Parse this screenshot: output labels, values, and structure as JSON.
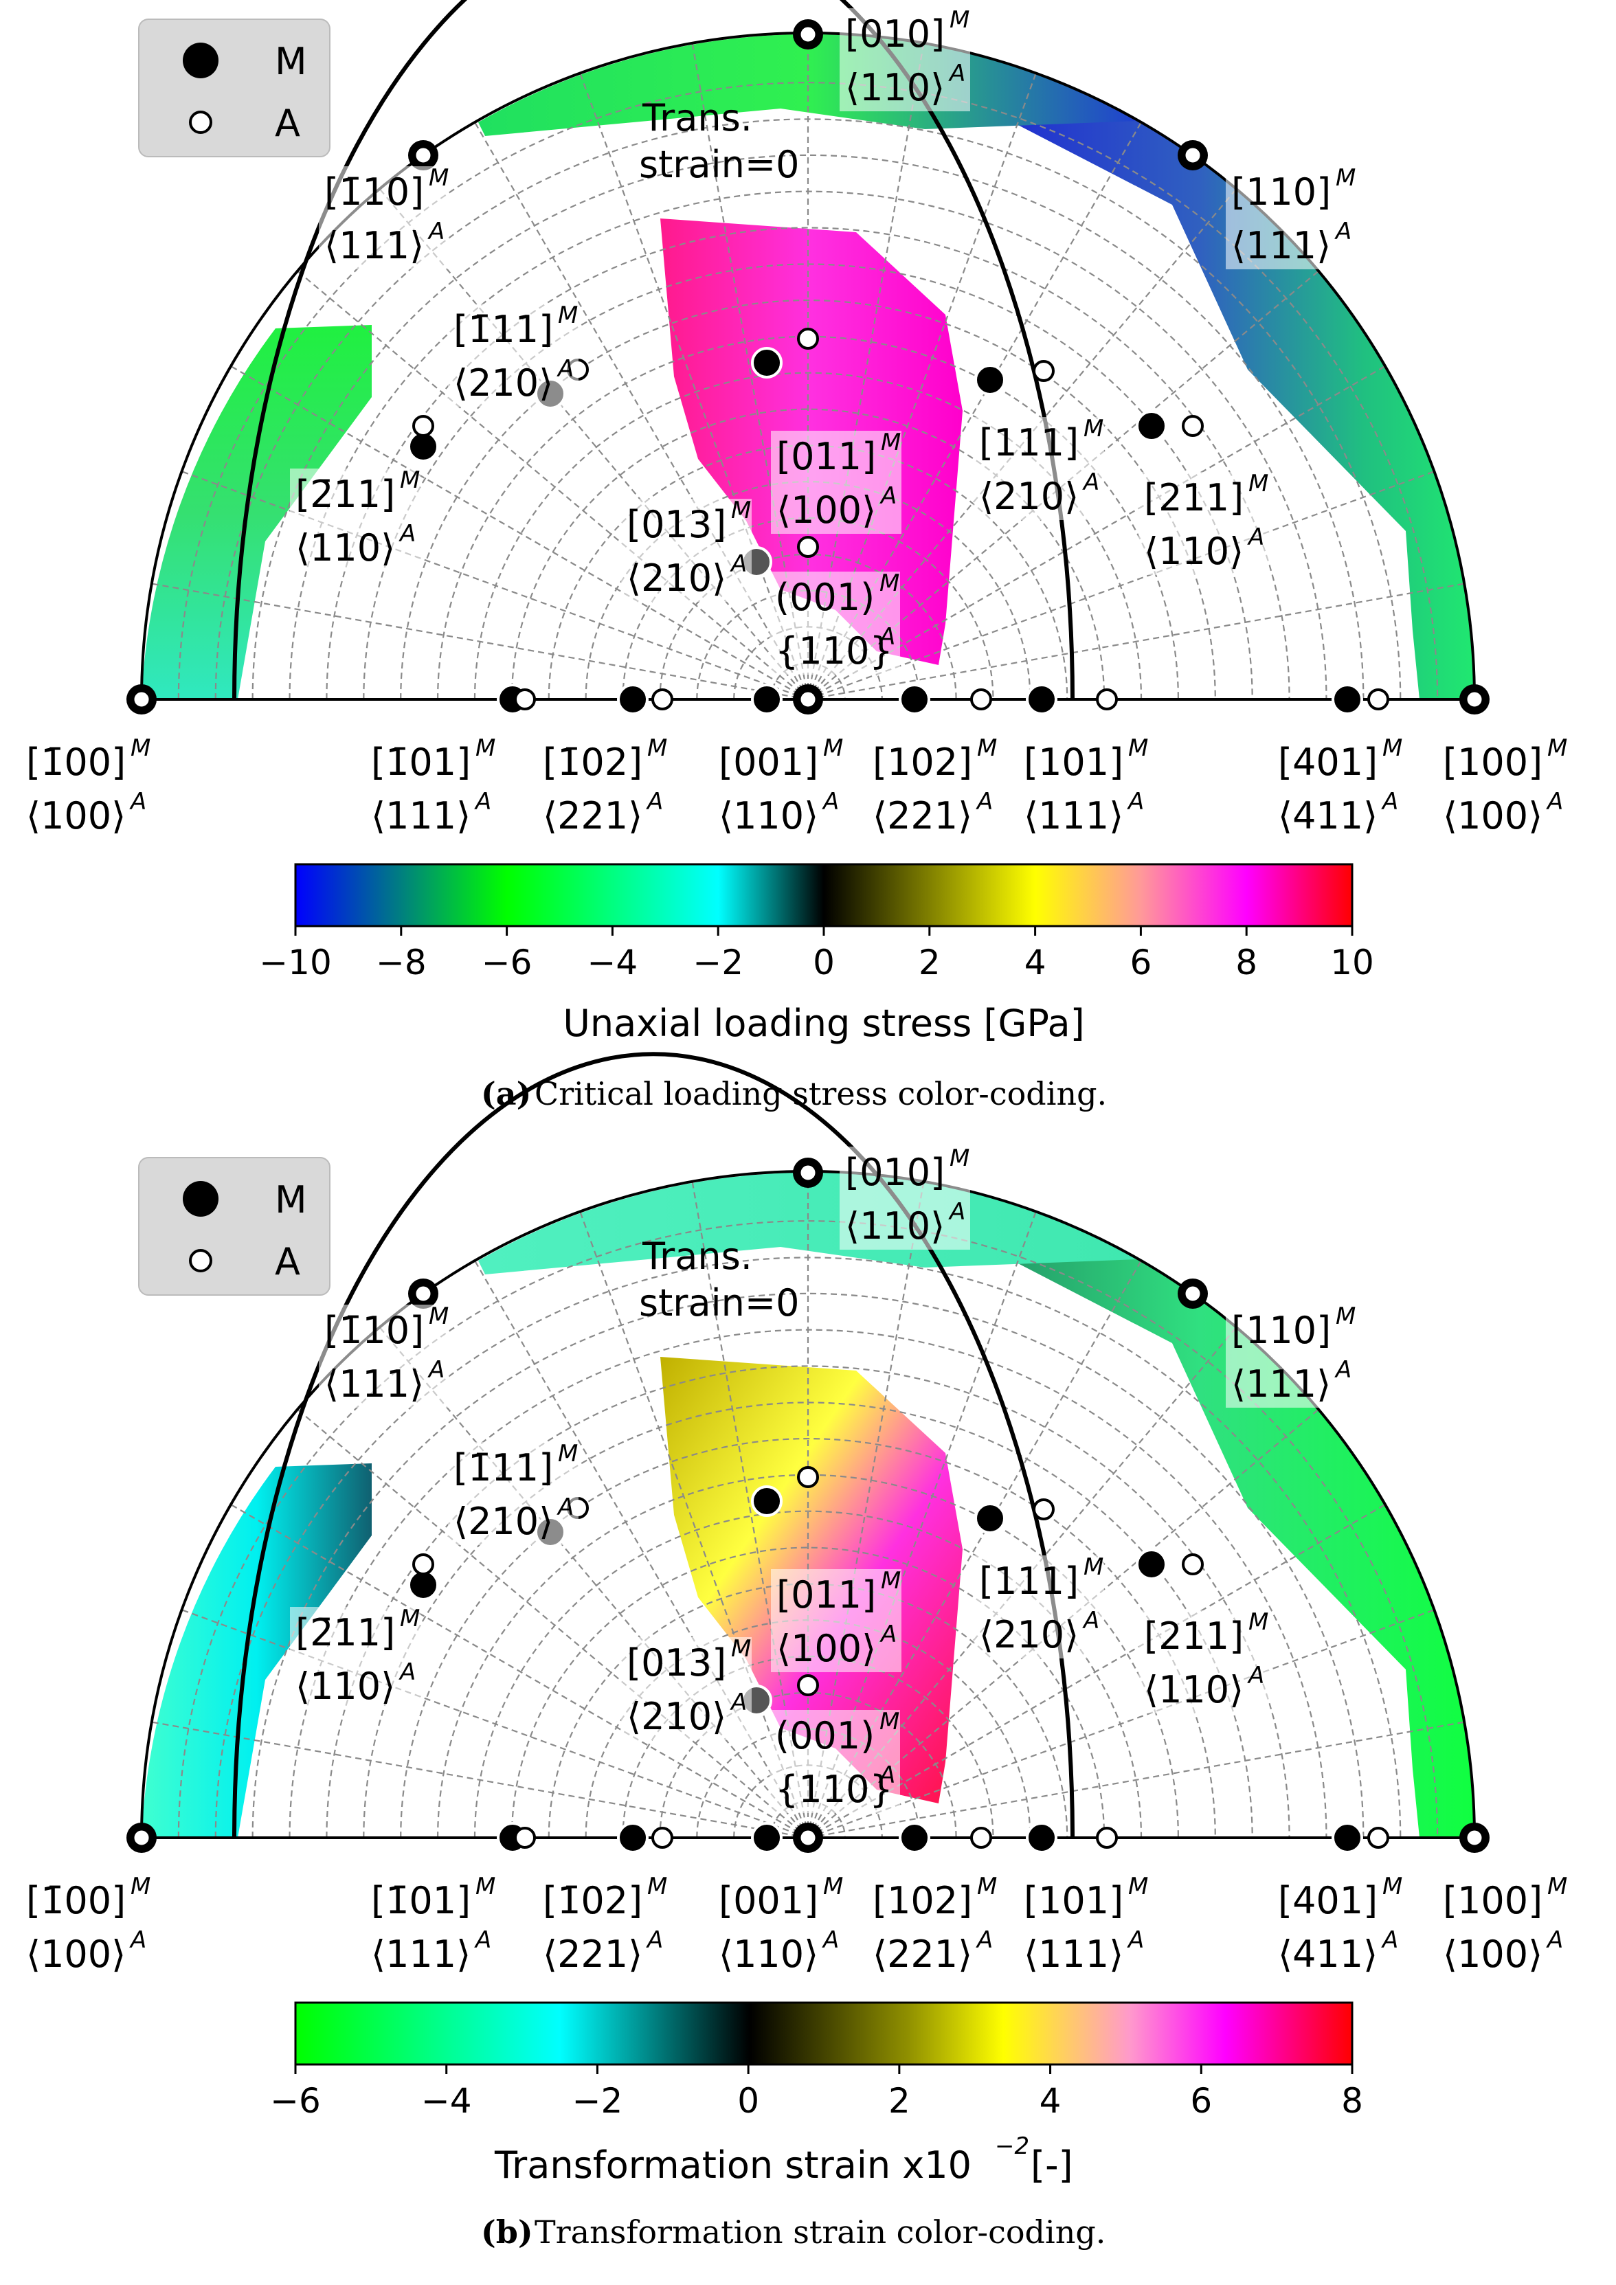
{
  "legend": [
    {
      "marker": "filled",
      "label": "M"
    },
    {
      "marker": "open",
      "label": "A"
    }
  ],
  "trans_strain_label": [
    "Trans.",
    "strain=0"
  ],
  "directions": [
    {
      "m": "[1̄00]",
      "a": "⟨100⟩",
      "sup_m": "M",
      "sup_a": "A"
    },
    {
      "m": "[1̄01]",
      "a": "⟨111⟩",
      "sup_m": "M",
      "sup_a": "A"
    },
    {
      "m": "[1̄02]",
      "a": "⟨221⟩",
      "sup_m": "M",
      "sup_a": "A"
    },
    {
      "m": "[001]",
      "a": "⟨110⟩",
      "sup_m": "M",
      "sup_a": "A"
    },
    {
      "m": "[102]",
      "a": "⟨221⟩",
      "sup_m": "M",
      "sup_a": "A"
    },
    {
      "m": "[101]",
      "a": "⟨111⟩",
      "sup_m": "M",
      "sup_a": "A"
    },
    {
      "m": "[401]",
      "a": "⟨411⟩",
      "sup_m": "M",
      "sup_a": "A"
    },
    {
      "m": "[100]",
      "a": "⟨100⟩",
      "sup_m": "M",
      "sup_a": "A"
    },
    {
      "m": "[010]",
      "a": "⟨110⟩",
      "sup_m": "M",
      "sup_a": "A"
    },
    {
      "m": "[1̄10]",
      "a": "⟨111⟩",
      "sup_m": "M",
      "sup_a": "A"
    },
    {
      "m": "[110]",
      "a": "⟨111⟩",
      "sup_m": "M",
      "sup_a": "A"
    },
    {
      "m": "[1̄11]",
      "a": "⟨210⟩",
      "sup_m": "M",
      "sup_a": "A"
    },
    {
      "m": "[2̄11]",
      "a": "⟨110⟩",
      "sup_m": "M",
      "sup_a": "A"
    },
    {
      "m": "[011]",
      "a": "⟨100⟩",
      "sup_m": "M",
      "sup_a": "A"
    },
    {
      "m": "[111]",
      "a": "⟨210⟩",
      "sup_m": "M",
      "sup_a": "A"
    },
    {
      "m": "[211]",
      "a": "⟨110⟩",
      "sup_m": "M",
      "sup_a": "A"
    },
    {
      "m": "[013]",
      "a": "⟨210⟩",
      "sup_m": "M",
      "sup_a": "A"
    },
    {
      "m": "(001)",
      "a": "{110}",
      "sup_m": "M",
      "sup_a": "A"
    }
  ],
  "panels": [
    {
      "id": "a",
      "caption_tag": "(a)",
      "caption_text": "Critical loading stress color-coding.",
      "colorbar": {
        "title": "Unaxial loading stress [GPa]",
        "ticks": [
          "−10",
          "−8",
          "−6",
          "−4",
          "−2",
          "0",
          "2",
          "4",
          "6",
          "8",
          "10"
        ],
        "range": [
          -10,
          10
        ]
      },
      "colors": {
        "left_region": "#2ee07a",
        "right_region": "#2a3fd0",
        "center_region": "#ff1a8c"
      }
    },
    {
      "id": "b",
      "caption_tag": "(b)",
      "caption_text": "Transformation strain color-coding.",
      "colorbar": {
        "title_main": "Transformation strain x10",
        "title_exp": "−2",
        "title_tail": " [-]",
        "ticks": [
          "−6",
          "−4",
          "−2",
          "0",
          "2",
          "4",
          "6",
          "8"
        ],
        "range": [
          -6,
          8
        ]
      },
      "colors": {
        "left_region": "#25f0d0",
        "right_region": "#2edf80",
        "center_region": "#ffe000"
      }
    }
  ]
}
